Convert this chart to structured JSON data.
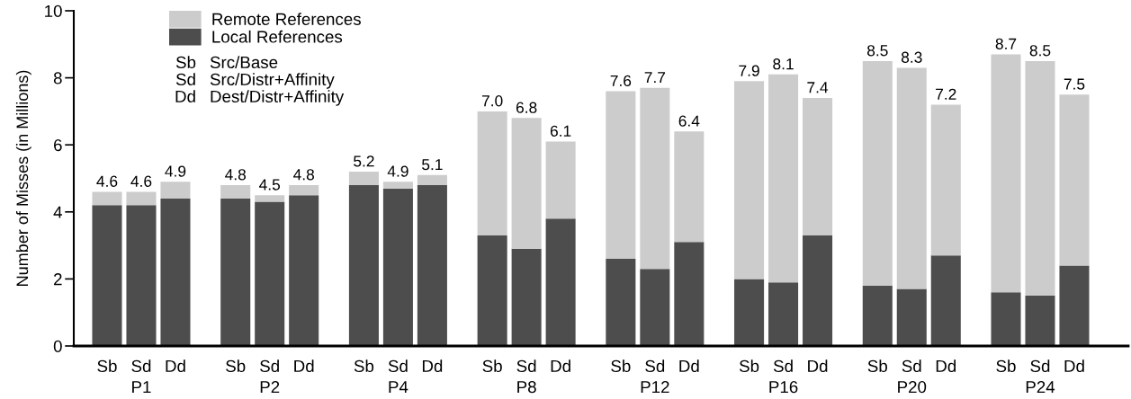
{
  "chart_data": {
    "type": "bar",
    "stacked": true,
    "ylabel": "Number of Misses (in Millions)",
    "categories": [
      "Sb",
      "Sd",
      "Dd",
      "Sb",
      "Sd",
      "Dd",
      "Sb",
      "Sd",
      "Dd",
      "Sb",
      "Sd",
      "Dd",
      "Sb",
      "Sd",
      "Dd",
      "Sb",
      "Sd",
      "Dd",
      "Sb",
      "Sd",
      "Dd",
      "Sb",
      "Sd",
      "Dd"
    ],
    "series": [
      {
        "name": "Local References",
        "color": "#4d4d4d",
        "values": [
          4.2,
          4.2,
          4.4,
          4.4,
          4.3,
          4.5,
          4.8,
          4.7,
          4.8,
          3.3,
          2.9,
          3.8,
          2.6,
          2.3,
          3.1,
          2.0,
          1.9,
          3.3,
          1.8,
          1.7,
          2.7,
          1.6,
          1.5,
          2.4
        ]
      },
      {
        "name": "Remote References",
        "color": "#cccccc",
        "values": [
          0.4,
          0.4,
          0.5,
          0.4,
          0.2,
          0.3,
          0.4,
          0.2,
          0.3,
          3.7,
          3.9,
          2.3,
          5.0,
          5.4,
          3.3,
          5.9,
          6.2,
          4.1,
          6.7,
          6.6,
          4.5,
          7.1,
          7.0,
          5.1
        ]
      }
    ],
    "totals": [
      "4.6",
      "4.6",
      "4.9",
      "4.8",
      "4.5",
      "4.8",
      "5.2",
      "4.9",
      "5.1",
      "7.0",
      "6.8",
      "6.1",
      "7.6",
      "7.7",
      "6.4",
      "7.9",
      "8.1",
      "7.4",
      "8.5",
      "8.3",
      "7.2",
      "8.7",
      "8.5",
      "7.5"
    ],
    "ylim": [
      0,
      10
    ],
    "yticks": [
      0,
      2,
      4,
      6,
      8,
      10
    ],
    "legend": "top left",
    "annotations": [
      "Sb Src/Base",
      "Sd Src/Distr+Affinity",
      "Dd Dest/Distr+Affinity",
      "P1",
      "P2",
      "P4",
      "P8",
      "P12",
      "P16",
      "P20",
      "P24"
    ]
  }
}
